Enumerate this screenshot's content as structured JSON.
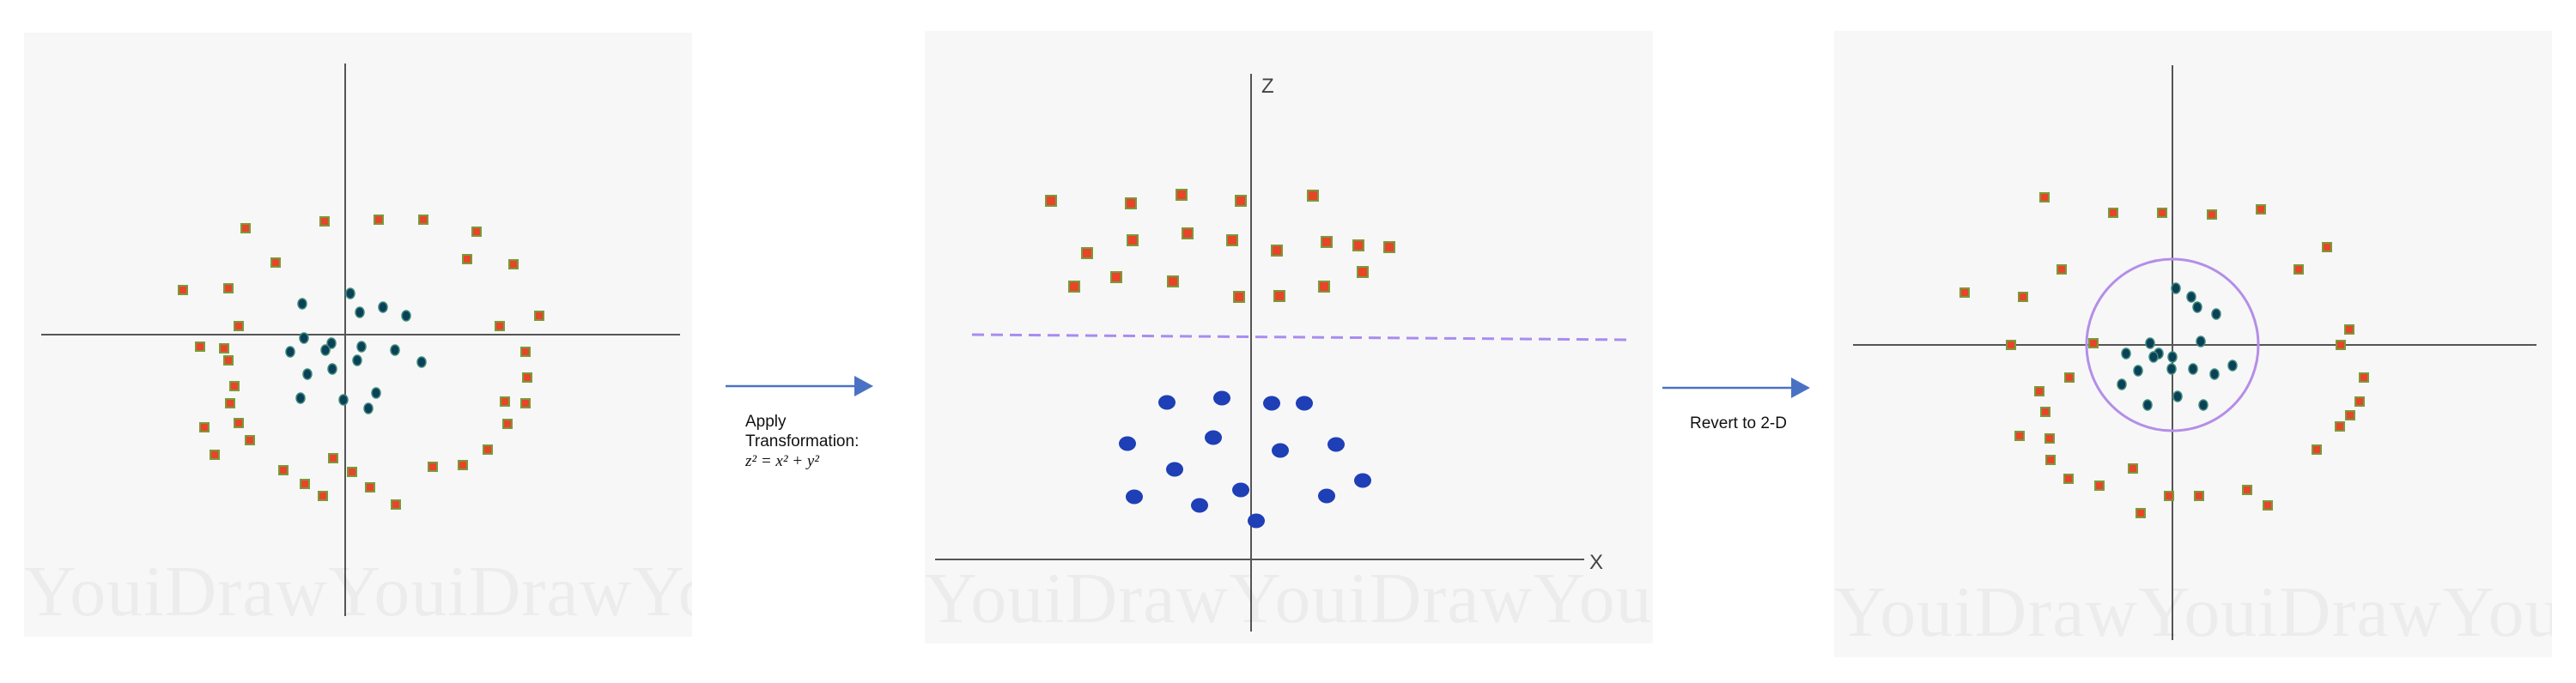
{
  "step1": {
    "line1": "Apply",
    "line2": "Transformation:",
    "equation": "z² = x² + y²"
  },
  "step2": {
    "label": "Revert to 2-D"
  },
  "panel_middle": {
    "z_axis_label": "Z",
    "x_axis_label": "X"
  },
  "watermarks": {
    "left": "YouiDrawYouiDrawYou",
    "middle": "YouiDrawYouiDrawYouiI",
    "right": "YouiDrawYouiDrawYoui"
  },
  "colors": {
    "square_fill": "#e8442a",
    "square_border": "#7a9a3a",
    "dot_inner": "#0c3f58",
    "blue_dot": "#1e3fb6",
    "separator": "#a98cf0",
    "arrow": "#4a72c4",
    "axis": "#555555"
  },
  "panel_left": {
    "squares": [
      [
        258,
        228
      ],
      [
        350,
        220
      ],
      [
        413,
        218
      ],
      [
        465,
        218
      ],
      [
        527,
        232
      ],
      [
        570,
        270
      ],
      [
        516,
        264
      ],
      [
        293,
        268
      ],
      [
        600,
        330
      ],
      [
        554,
        342
      ],
      [
        185,
        300
      ],
      [
        238,
        298
      ],
      [
        250,
        342
      ],
      [
        233,
        368
      ],
      [
        238,
        382
      ],
      [
        245,
        412
      ],
      [
        240,
        432
      ],
      [
        560,
        430
      ],
      [
        250,
        455
      ],
      [
        210,
        460
      ],
      [
        263,
        475
      ],
      [
        222,
        492
      ],
      [
        302,
        510
      ],
      [
        360,
        496
      ],
      [
        327,
        526
      ],
      [
        382,
        512
      ],
      [
        348,
        540
      ],
      [
        403,
        530
      ],
      [
        433,
        550
      ],
      [
        476,
        506
      ],
      [
        511,
        504
      ],
      [
        540,
        486
      ],
      [
        563,
        456
      ],
      [
        584,
        432
      ],
      [
        586,
        402
      ],
      [
        584,
        372
      ],
      [
        205,
        366
      ]
    ],
    "dots": [
      [
        324,
        316
      ],
      [
        380,
        304
      ],
      [
        391,
        326
      ],
      [
        418,
        320
      ],
      [
        445,
        330
      ],
      [
        326,
        356
      ],
      [
        358,
        362
      ],
      [
        351,
        370
      ],
      [
        393,
        366
      ],
      [
        388,
        382
      ],
      [
        432,
        370
      ],
      [
        463,
        384
      ],
      [
        310,
        372
      ],
      [
        330,
        398
      ],
      [
        359,
        392
      ],
      [
        410,
        420
      ],
      [
        322,
        426
      ],
      [
        372,
        428
      ],
      [
        401,
        438
      ]
    ]
  },
  "panel_middle_points": {
    "squares": [
      [
        147,
        198
      ],
      [
        240,
        201
      ],
      [
        299,
        191
      ],
      [
        368,
        198
      ],
      [
        452,
        192
      ],
      [
        189,
        259
      ],
      [
        242,
        244
      ],
      [
        306,
        236
      ],
      [
        358,
        244
      ],
      [
        410,
        256
      ],
      [
        468,
        246
      ],
      [
        505,
        250
      ],
      [
        541,
        252
      ],
      [
        510,
        281
      ],
      [
        465,
        298
      ],
      [
        174,
        298
      ],
      [
        223,
        287
      ],
      [
        289,
        292
      ],
      [
        366,
        310
      ],
      [
        413,
        309
      ]
    ],
    "dots": [
      [
        282,
        433
      ],
      [
        346,
        428
      ],
      [
        404,
        434
      ],
      [
        442,
        434
      ],
      [
        236,
        481
      ],
      [
        336,
        474
      ],
      [
        291,
        511
      ],
      [
        414,
        489
      ],
      [
        479,
        482
      ],
      [
        510,
        524
      ],
      [
        244,
        543
      ],
      [
        320,
        553
      ],
      [
        368,
        535
      ],
      [
        468,
        542
      ],
      [
        386,
        571
      ]
    ]
  },
  "panel_right": {
    "squares": [
      [
        245,
        194
      ],
      [
        325,
        212
      ],
      [
        382,
        212
      ],
      [
        440,
        214
      ],
      [
        497,
        208
      ],
      [
        574,
        252
      ],
      [
        541,
        278
      ],
      [
        265,
        278
      ],
      [
        152,
        305
      ],
      [
        220,
        310
      ],
      [
        206,
        366
      ],
      [
        302,
        364
      ],
      [
        274,
        404
      ],
      [
        239,
        420
      ],
      [
        246,
        444
      ],
      [
        251,
        475
      ],
      [
        216,
        472
      ],
      [
        252,
        500
      ],
      [
        273,
        522
      ],
      [
        309,
        530
      ],
      [
        348,
        510
      ],
      [
        357,
        562
      ],
      [
        390,
        542
      ],
      [
        425,
        542
      ],
      [
        481,
        535
      ],
      [
        505,
        553
      ],
      [
        562,
        488
      ],
      [
        589,
        461
      ],
      [
        601,
        448
      ],
      [
        612,
        432
      ],
      [
        617,
        404
      ],
      [
        590,
        366
      ],
      [
        600,
        348
      ]
    ],
    "dots": [
      [
        398,
        300
      ],
      [
        416,
        310
      ],
      [
        423,
        322
      ],
      [
        445,
        330
      ],
      [
        427,
        362
      ],
      [
        368,
        364
      ],
      [
        378,
        376
      ],
      [
        372,
        380
      ],
      [
        394,
        380
      ],
      [
        418,
        394
      ],
      [
        464,
        390
      ],
      [
        443,
        400
      ],
      [
        340,
        376
      ],
      [
        354,
        396
      ],
      [
        393,
        394
      ],
      [
        430,
        436
      ],
      [
        335,
        412
      ],
      [
        365,
        436
      ],
      [
        400,
        426
      ]
    ]
  }
}
